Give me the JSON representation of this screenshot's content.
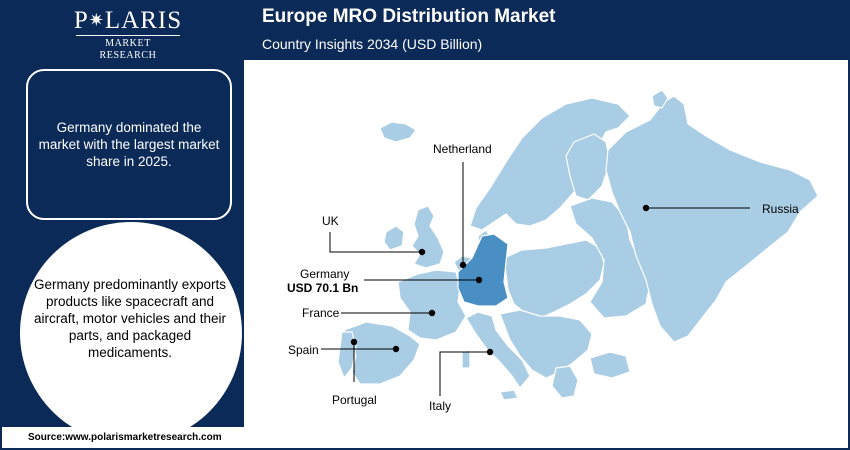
{
  "header": {
    "logo_main_left": "P",
    "logo_main_right": "LARIS",
    "logo_sub": "MARKET RESEARCH",
    "title": "Europe MRO Distribution Market",
    "subtitle": "Country Insights 2034 (USD Billion)"
  },
  "insight_box": {
    "text": "Germany dominated the market with the largest market share in 2025."
  },
  "circle_box": {
    "text": "Germany predominantly exports products like spacecraft and aircraft, motor vehicles and their parts, and packaged medicaments."
  },
  "source": "Source:www.polarismarketresearch.com",
  "map": {
    "labels": {
      "netherland": "Netherland",
      "uk": "UK",
      "germany": "Germany",
      "germany_value": "USD 70.1 Bn",
      "france": "France",
      "spain": "Spain",
      "portugal": "Portugal",
      "italy": "Italy",
      "russia": "Russia"
    },
    "colors": {
      "land": "#a9cde4",
      "borders": "#ffffff",
      "highlight": "#4a8fc4",
      "dark_navy": "#0b2a57"
    },
    "highlighted_country": "Germany"
  }
}
